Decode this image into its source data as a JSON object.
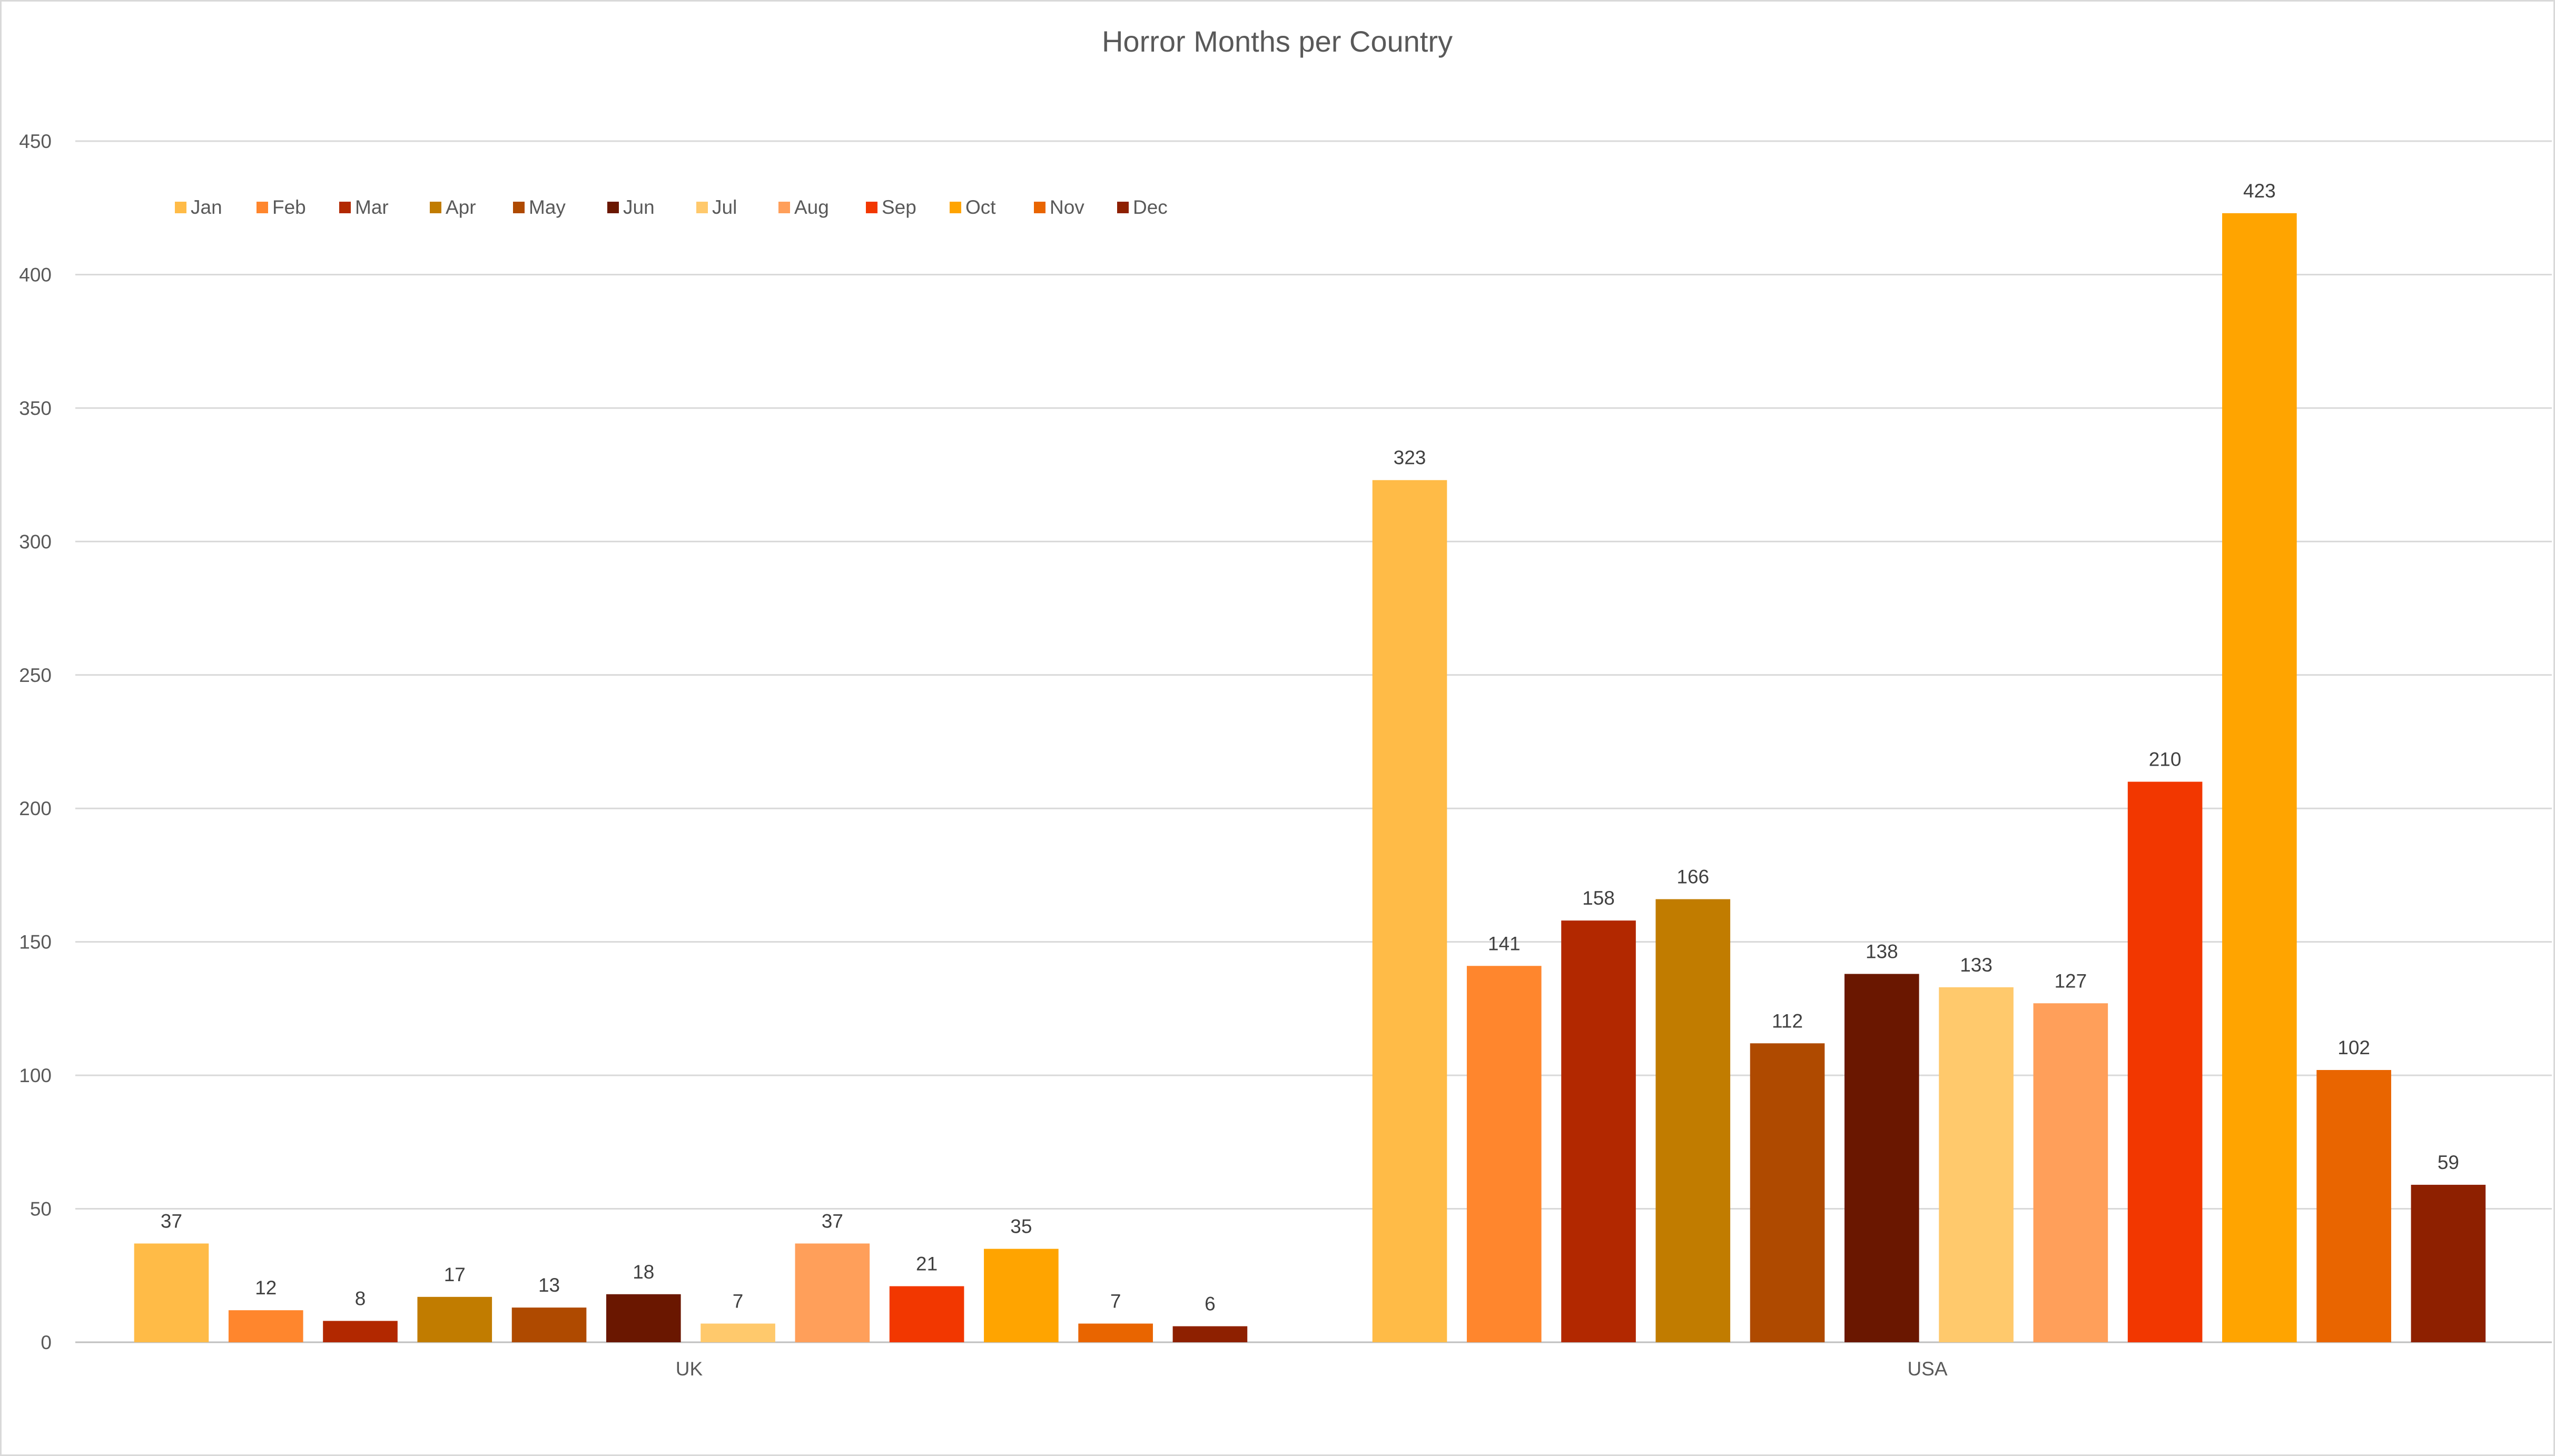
{
  "chart_data": {
    "type": "bar",
    "title": "Horror Months per Country",
    "xlabel": "",
    "ylabel": "",
    "categories": [
      "UK",
      "USA"
    ],
    "ylim": [
      0,
      450
    ],
    "yticks": [
      0,
      50,
      100,
      150,
      200,
      250,
      300,
      350,
      400,
      450
    ],
    "grid": true,
    "legend_position": "top-left",
    "series": [
      {
        "name": "Jan",
        "color": "#FFBB47",
        "values": [
          37,
          323
        ]
      },
      {
        "name": "Feb",
        "color": "#FF862D",
        "values": [
          12,
          141
        ]
      },
      {
        "name": "Mar",
        "color": "#B22800",
        "values": [
          8,
          158
        ]
      },
      {
        "name": "Apr",
        "color": "#C17C00",
        "values": [
          17,
          166
        ]
      },
      {
        "name": "May",
        "color": "#AF4A00",
        "values": [
          13,
          112
        ]
      },
      {
        "name": "Jun",
        "color": "#6A1700",
        "values": [
          18,
          138
        ]
      },
      {
        "name": "Jul",
        "color": "#FFC96C",
        "values": [
          7,
          133
        ]
      },
      {
        "name": "Aug",
        "color": "#FF9F5A",
        "values": [
          37,
          127
        ]
      },
      {
        "name": "Sep",
        "color": "#F23700",
        "values": [
          21,
          210
        ]
      },
      {
        "name": "Oct",
        "color": "#FFA400",
        "values": [
          35,
          423
        ]
      },
      {
        "name": "Nov",
        "color": "#E96500",
        "values": [
          7,
          102
        ]
      },
      {
        "name": "Dec",
        "color": "#8E2000",
        "values": [
          6,
          59
        ]
      }
    ]
  }
}
